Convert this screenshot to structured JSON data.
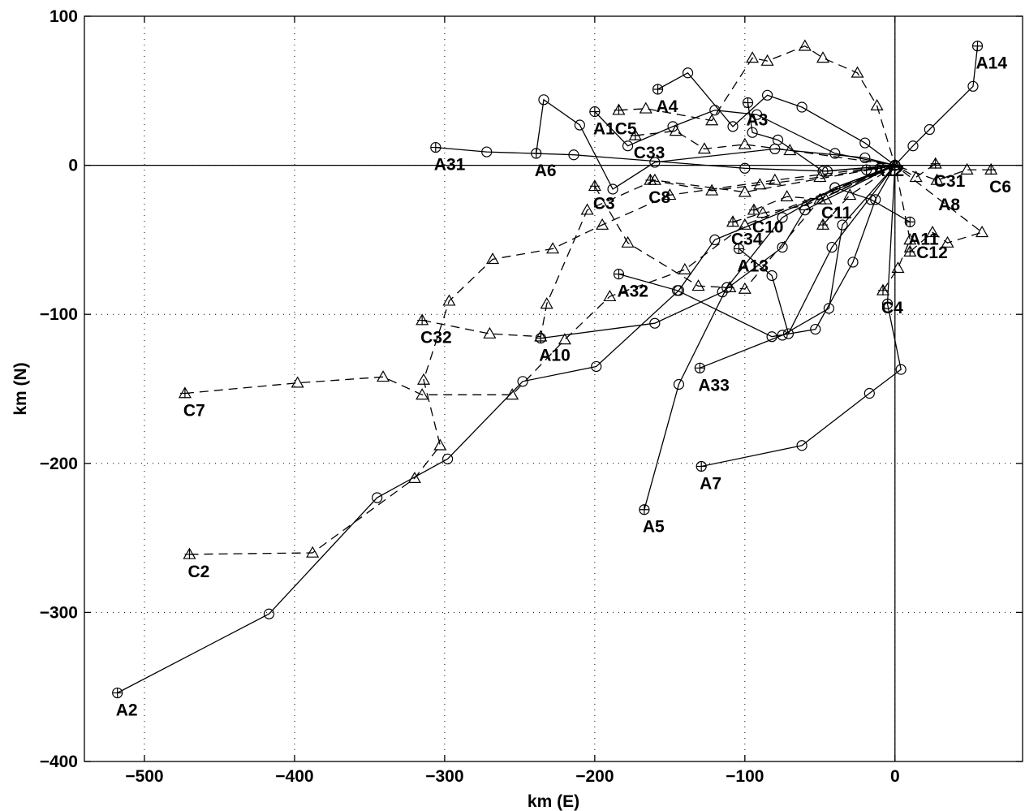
{
  "chart_data": {
    "type": "scatter",
    "title": "",
    "xlabel": "km (E)",
    "ylabel": "km (N)",
    "xlim": [
      -540,
      85
    ],
    "ylim": [
      -400,
      100
    ],
    "xticks": [
      -500,
      -400,
      -300,
      -200,
      -100,
      0
    ],
    "yticks": [
      -400,
      -300,
      -200,
      -100,
      0,
      100
    ],
    "x_tick_labels": [
      "−500",
      "−400",
      "−300",
      "−200",
      "−100",
      "0"
    ],
    "y_tick_labels": [
      "−400",
      "−300",
      "−200",
      "−100",
      "0",
      "100"
    ],
    "grid": true,
    "origin_lines": true,
    "series_styles": {
      "A": {
        "line": "solid",
        "marker": "circle"
      },
      "C": {
        "line": "dashed",
        "marker": "triangle"
      }
    },
    "series": [
      {
        "name": "A2",
        "style": "A",
        "points": [
          [
            -518,
            -354
          ],
          [
            -417,
            -301
          ],
          [
            -345,
            -223
          ],
          [
            -298,
            -197
          ],
          [
            -248,
            -145
          ],
          [
            -199,
            -135
          ],
          [
            -144,
            -84
          ],
          [
            -120,
            -50
          ],
          [
            0,
            0
          ]
        ]
      },
      {
        "name": "A5",
        "style": "A",
        "points": [
          [
            -167,
            -231
          ],
          [
            -144,
            -147
          ],
          [
            -112,
            -82
          ],
          [
            -75,
            -35
          ],
          [
            -40,
            -15
          ],
          [
            0,
            0
          ]
        ]
      },
      {
        "name": "A7",
        "style": "A",
        "points": [
          [
            -129,
            -202
          ],
          [
            -62,
            -188
          ],
          [
            -17,
            -153
          ],
          [
            4,
            -137
          ],
          [
            -5,
            -93
          ],
          [
            0,
            0
          ]
        ]
      },
      {
        "name": "A33",
        "style": "A",
        "points": [
          [
            -130,
            -136
          ],
          [
            -75,
            -114
          ],
          [
            -44,
            -96
          ],
          [
            -35,
            -40
          ],
          [
            0,
            0
          ]
        ]
      },
      {
        "name": "A10",
        "style": "A",
        "points": [
          [
            -236,
            -116
          ],
          [
            -160,
            -106
          ],
          [
            -115,
            -85
          ],
          [
            -75,
            -55
          ],
          [
            -60,
            -30
          ],
          [
            0,
            0
          ]
        ]
      },
      {
        "name": "A32",
        "style": "A",
        "points": [
          [
            -184,
            -73
          ],
          [
            -145,
            -84
          ],
          [
            -82,
            -115
          ],
          [
            -53,
            -110
          ],
          [
            -28,
            -65
          ],
          [
            -13,
            -23
          ],
          [
            0,
            0
          ]
        ]
      },
      {
        "name": "A13",
        "style": "A",
        "points": [
          [
            -104,
            -56
          ],
          [
            -82,
            -74
          ],
          [
            -71,
            -113
          ],
          [
            -42,
            -55
          ],
          [
            0,
            0
          ]
        ]
      },
      {
        "name": "A6",
        "style": "A",
        "points": [
          [
            -239,
            8
          ],
          [
            -234,
            44
          ],
          [
            -210,
            27
          ],
          [
            -188,
            -16
          ],
          [
            -160,
            2
          ],
          [
            -80,
            11
          ],
          [
            -20,
            5
          ],
          [
            0,
            0
          ]
        ]
      },
      {
        "name": "A31",
        "style": "A",
        "points": [
          [
            -306,
            12
          ],
          [
            -272,
            9
          ],
          [
            -214,
            7
          ],
          [
            -100,
            -2
          ],
          [
            -45,
            -4
          ],
          [
            0,
            0
          ]
        ]
      },
      {
        "name": "A1",
        "style": "A",
        "points": [
          [
            -200,
            36
          ],
          [
            -178,
            13
          ],
          [
            -148,
            26
          ],
          [
            -120,
            37
          ],
          [
            -92,
            34
          ],
          [
            -40,
            8
          ],
          [
            0,
            0
          ]
        ]
      },
      {
        "name": "A4",
        "style": "A",
        "points": [
          [
            -158,
            51
          ],
          [
            -138,
            62
          ],
          [
            -108,
            26
          ],
          [
            -85,
            47
          ],
          [
            -62,
            39
          ],
          [
            -20,
            15
          ],
          [
            0,
            0
          ]
        ]
      },
      {
        "name": "A3",
        "style": "A",
        "points": [
          [
            -98,
            42
          ],
          [
            -95,
            22
          ],
          [
            -78,
            17
          ],
          [
            -48,
            -4
          ],
          [
            0,
            0
          ]
        ]
      },
      {
        "name": "A14",
        "style": "A",
        "points": [
          [
            55,
            80
          ],
          [
            52,
            53
          ],
          [
            23,
            24
          ],
          [
            12,
            13
          ],
          [
            0,
            0
          ]
        ]
      },
      {
        "name": "A8",
        "style": "A",
        "points": [
          [
            10,
            -38
          ],
          [
            -16,
            -23
          ],
          [
            -40,
            -15
          ],
          [
            0,
            0
          ]
        ]
      },
      {
        "name": "A12",
        "style": "A",
        "points": [
          [
            -19,
            -3
          ],
          [
            -10,
            -2
          ],
          [
            0,
            0
          ]
        ]
      },
      {
        "name": "C7",
        "style": "C",
        "points": [
          [
            -473,
            -153
          ],
          [
            -398,
            -146
          ],
          [
            -341,
            -142
          ],
          [
            -315,
            -154
          ],
          [
            -255,
            -154
          ],
          [
            -220,
            -117
          ],
          [
            -190,
            -88
          ],
          [
            -140,
            -70
          ],
          [
            -100,
            -40
          ],
          [
            0,
            0
          ]
        ]
      },
      {
        "name": "C2",
        "style": "C",
        "points": [
          [
            -470,
            -261
          ],
          [
            -388,
            -260
          ],
          [
            -320,
            -210
          ],
          [
            -303,
            -188
          ],
          [
            -314,
            -144
          ],
          [
            -297,
            -91
          ],
          [
            -268,
            -63
          ],
          [
            -228,
            -56
          ],
          [
            -195,
            -40
          ],
          [
            -150,
            -20
          ],
          [
            -80,
            -10
          ],
          [
            0,
            0
          ]
        ]
      },
      {
        "name": "C32",
        "style": "C",
        "points": [
          [
            -315,
            -104
          ],
          [
            -270,
            -113
          ],
          [
            -236,
            -115
          ],
          [
            -232,
            -93
          ],
          [
            -205,
            -30
          ],
          [
            -160,
            -10
          ],
          [
            -100,
            -18
          ],
          [
            0,
            0
          ]
        ]
      },
      {
        "name": "C3",
        "style": "C",
        "points": [
          [
            -200,
            -14
          ],
          [
            -178,
            -52
          ],
          [
            -131,
            -81
          ],
          [
            -110,
            -82
          ],
          [
            -100,
            -83
          ],
          [
            -50,
            -23
          ],
          [
            0,
            0
          ]
        ]
      },
      {
        "name": "C8",
        "style": "C",
        "points": [
          [
            -163,
            -10
          ],
          [
            -122,
            -17
          ],
          [
            -90,
            -13
          ],
          [
            -50,
            -8
          ],
          [
            0,
            0
          ]
        ]
      },
      {
        "name": "C5",
        "style": "C",
        "points": [
          [
            -184,
            37
          ],
          [
            -166,
            38
          ],
          [
            -122,
            30
          ],
          [
            -95,
            72
          ],
          [
            -85,
            70
          ],
          [
            -60,
            80
          ],
          [
            -48,
            72
          ],
          [
            -25,
            62
          ],
          [
            -12,
            40
          ],
          [
            0,
            0
          ]
        ]
      },
      {
        "name": "C33",
        "style": "C",
        "points": [
          [
            -173,
            20
          ],
          [
            -146,
            23
          ],
          [
            -127,
            11
          ],
          [
            -100,
            14
          ],
          [
            -70,
            10
          ],
          [
            0,
            0
          ]
        ]
      },
      {
        "name": "C34",
        "style": "C",
        "points": [
          [
            -108,
            -38
          ],
          [
            -88,
            -32
          ],
          [
            -60,
            -27
          ],
          [
            0,
            0
          ]
        ]
      },
      {
        "name": "C10",
        "style": "C",
        "points": [
          [
            -94,
            -30
          ],
          [
            -72,
            -21
          ],
          [
            -46,
            -23
          ],
          [
            0,
            0
          ]
        ]
      },
      {
        "name": "C11",
        "style": "C",
        "points": [
          [
            -48,
            -40
          ],
          [
            -30,
            -20
          ],
          [
            0,
            0
          ]
        ]
      },
      {
        "name": "C4",
        "style": "C",
        "points": [
          [
            -8,
            -84
          ],
          [
            2,
            -69
          ],
          [
            10,
            -50
          ],
          [
            0,
            0
          ]
        ]
      },
      {
        "name": "C12",
        "style": "C",
        "points": [
          [
            10,
            -58
          ],
          [
            25,
            -45
          ],
          [
            35,
            -52
          ],
          [
            58,
            -45
          ],
          [
            0,
            0
          ]
        ]
      },
      {
        "name": "C6",
        "style": "C",
        "points": [
          [
            64,
            -3
          ],
          [
            48,
            -3
          ],
          [
            28,
            -10
          ],
          [
            0,
            0
          ]
        ]
      },
      {
        "name": "C31",
        "style": "C",
        "points": [
          [
            27,
            1
          ],
          [
            14,
            -8
          ],
          [
            0,
            0
          ]
        ]
      }
    ],
    "annotations": [
      {
        "text": "A2",
        "x": -518,
        "y": -354,
        "pos": "below"
      },
      {
        "text": "C2",
        "x": -470,
        "y": -261,
        "pos": "below"
      },
      {
        "text": "C7",
        "x": -473,
        "y": -153,
        "pos": "below"
      },
      {
        "text": "C32",
        "x": -315,
        "y": -104,
        "pos": "below"
      },
      {
        "text": "A31",
        "x": -306,
        "y": 12,
        "pos": "below"
      },
      {
        "text": "A6",
        "x": -239,
        "y": 8,
        "pos": "below"
      },
      {
        "text": "A10",
        "x": -236,
        "y": -116,
        "pos": "below"
      },
      {
        "text": "C3",
        "x": -200,
        "y": -14,
        "pos": "below"
      },
      {
        "text": "A1C5",
        "x": -200,
        "y": 36,
        "pos": "below"
      },
      {
        "text": "C33",
        "x": -173,
        "y": 20,
        "pos": "below"
      },
      {
        "text": "C8",
        "x": -163,
        "y": -10,
        "pos": "below"
      },
      {
        "text": "A4",
        "x": -158,
        "y": 51,
        "pos": "below"
      },
      {
        "text": "A32",
        "x": -184,
        "y": -73,
        "pos": "below"
      },
      {
        "text": "A5",
        "x": -167,
        "y": -231,
        "pos": "below"
      },
      {
        "text": "A7",
        "x": -129,
        "y": -202,
        "pos": "below"
      },
      {
        "text": "A33",
        "x": -130,
        "y": -136,
        "pos": "below"
      },
      {
        "text": "C34",
        "x": -108,
        "y": -38,
        "pos": "below"
      },
      {
        "text": "C10",
        "x": -94,
        "y": -30,
        "pos": "below"
      },
      {
        "text": "A13",
        "x": -104,
        "y": -56,
        "pos": "below"
      },
      {
        "text": "A3",
        "x": -98,
        "y": 42,
        "pos": "below"
      },
      {
        "text": "C11",
        "x": -48,
        "y": -40,
        "pos": "above"
      },
      {
        "text": "A12",
        "x": -19,
        "y": -3,
        "pos": "right"
      },
      {
        "text": "C4",
        "x": -8,
        "y": -84,
        "pos": "below"
      },
      {
        "text": "A14",
        "x": 55,
        "y": 80,
        "pos": "below"
      },
      {
        "text": "C31",
        "x": 27,
        "y": 1,
        "pos": "below"
      },
      {
        "text": "C6",
        "x": 64,
        "y": -3,
        "pos": "below"
      },
      {
        "text": "A8",
        "x": 30,
        "y": -15,
        "pos": "below"
      },
      {
        "text": "A11",
        "x": 10,
        "y": -38,
        "pos": "below"
      },
      {
        "text": "C12",
        "x": 10,
        "y": -58,
        "pos": "right"
      }
    ]
  }
}
